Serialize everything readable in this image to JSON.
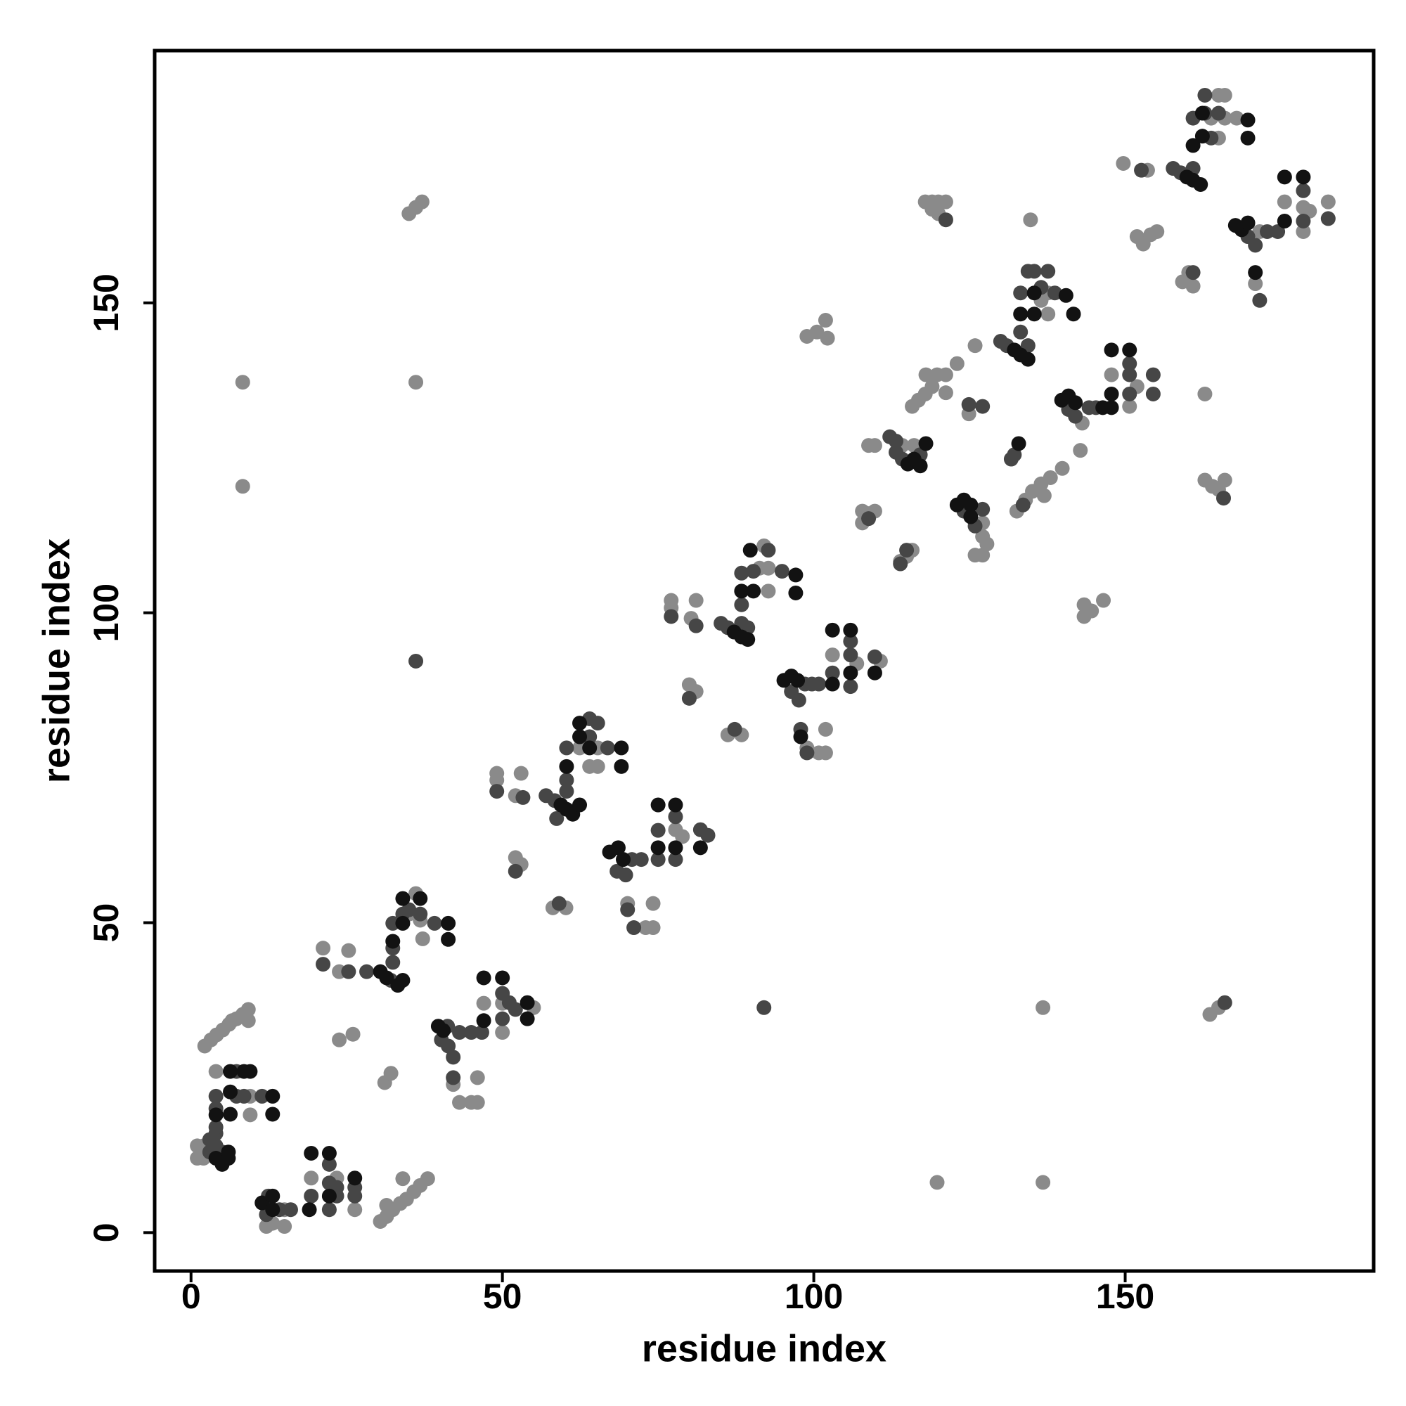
{
  "chart_data": {
    "type": "scatter",
    "xlabel": "residue index",
    "ylabel": "residue index",
    "xlim": [
      -5.84,
      189.9
    ],
    "ylim": [
      -6.2,
      190.7
    ],
    "xticks": [
      0,
      50,
      100,
      150
    ],
    "yticks": [
      0,
      50,
      100,
      150
    ],
    "series": [
      {
        "color": "#8a8a8a",
        "x": [
          1,
          1,
          2,
          2,
          4,
          9.5,
          9.5,
          12.1,
          13.1,
          15,
          15,
          19.3,
          23.4,
          26.3,
          2.2,
          3.2,
          4.1,
          5.1,
          6.1,
          7.3,
          8.3,
          9.2,
          6.6,
          9.2,
          30.4,
          31.4,
          32.4,
          33.6,
          34.6,
          35.8,
          36.8,
          38,
          34,
          31.4,
          36.1,
          35,
          37.2,
          36.8,
          25.3,
          21.2,
          23.8,
          23.8,
          26,
          31.1,
          32.1,
          42.1,
          43.1,
          45,
          46,
          46,
          47,
          50,
          50,
          55,
          49.1,
          49.1,
          53,
          52.1,
          52.1,
          53,
          58.1,
          60.2,
          62.4,
          65.3,
          64,
          65.3,
          70.1,
          73,
          74.2,
          74.2,
          77.8,
          78.9,
          77.1,
          77.1,
          81.1,
          80.3,
          80,
          81.1,
          86.2,
          88.4,
          92,
          91.3,
          92.7,
          92.7,
          98.9,
          100.8,
          101.9,
          101.9,
          103,
          106.9,
          110.7,
          98.9,
          100.5,
          101.9,
          102.2,
          107.8,
          107.8,
          108.8,
          109.8,
          113.9,
          114.9,
          115.8,
          108.8,
          109.8,
          116.1,
          114.2,
          115.8,
          116.8,
          117.9,
          119,
          119.8,
          121.2,
          121.2,
          118,
          123,
          125.9,
          117.9,
          119,
          120,
          121.2,
          119,
          120,
          127.1,
          127.1,
          127.8,
          125.9,
          127.1,
          124.9,
          137.6,
          137.6,
          136.5,
          134.8,
          132.6,
          134,
          135.1,
          136.5,
          138,
          137,
          139.9,
          142.8,
          143.1,
          147.8,
          150.7,
          151.9,
          143.4,
          143.4,
          144.6,
          146.5,
          165,
          166,
          163.8,
          166,
          167.9,
          165,
          149.7,
          153.6,
          151.9,
          152.9,
          154.1,
          155.1,
          159.2,
          160.2,
          160.9,
          162.8,
          162.8,
          164,
          165,
          166,
          163.6,
          165,
          171.6,
          170.9,
          175.6,
          178.6,
          178.6,
          179.6,
          182.6,
          8.3,
          8.3,
          36.1,
          35,
          36.1,
          37.1,
          136.8,
          119.8,
          136.8
        ],
        "values": [
          12,
          14,
          14,
          12,
          26,
          22,
          19,
          1,
          1.5,
          3.7,
          1,
          8.8,
          8.8,
          3.7,
          30.1,
          31.1,
          31.9,
          32.7,
          33.6,
          34.5,
          35.2,
          36,
          34.2,
          34.2,
          1.8,
          2.6,
          3.7,
          4.7,
          5.4,
          6.6,
          7.6,
          8.7,
          8.7,
          4.4,
          54.7,
          51.4,
          47.4,
          50.4,
          45.5,
          45.9,
          42.1,
          31.1,
          32,
          24.2,
          25.7,
          23.9,
          21,
          21,
          25,
          21,
          37,
          37,
          32.3,
          36.3,
          74.1,
          73,
          74.1,
          70.5,
          60.5,
          59.4,
          52.4,
          52.4,
          78.2,
          78.2,
          75.2,
          75.2,
          53.1,
          49.2,
          49.2,
          53.1,
          65,
          63.9,
          102,
          100.8,
          102,
          99.1,
          88.4,
          87.3,
          80.3,
          80.3,
          110.8,
          107.2,
          107.2,
          103.5,
          78.2,
          77.4,
          77.4,
          81.2,
          93.2,
          91.8,
          92.2,
          144.6,
          145.3,
          147.2,
          144.3,
          114.5,
          116.4,
          116,
          116.4,
          108.3,
          109.1,
          110.1,
          127,
          127,
          127,
          127,
          133.3,
          134.3,
          135.3,
          136.5,
          138.4,
          138.4,
          135.5,
          138.4,
          140.2,
          143.1,
          166.3,
          165.1,
          164.4,
          166.3,
          166.3,
          166.3,
          114.5,
          112.3,
          111.1,
          109.3,
          109.3,
          132.1,
          151.6,
          148.2,
          150.4,
          163.4,
          116.4,
          118.2,
          119.6,
          120.8,
          121.8,
          118.9,
          123.3,
          126.2,
          130.6,
          138.4,
          133.3,
          136.5,
          101.3,
          99.4,
          100.3,
          102,
          183.5,
          183.5,
          179.8,
          179.8,
          179.8,
          176.6,
          172.5,
          171.4,
          160.7,
          159.5,
          161,
          161.5,
          153.4,
          154.9,
          152.7,
          135.3,
          121.4,
          120.4,
          119.9,
          121.4,
          35.2,
          36.3,
          161.5,
          153.1,
          166.3,
          165.4,
          161.5,
          164.8,
          166.3,
          137.2,
          120.4,
          137.2,
          164.4,
          165.4,
          166.3,
          36.3,
          8.1,
          8.1
        ]
      },
      {
        "color": "#464646",
        "x": [
          3,
          3,
          4,
          5,
          5,
          4,
          4,
          4,
          4,
          7.3,
          8.5,
          11.4,
          7.3,
          12.4,
          12.1,
          14.2,
          16,
          19.3,
          22.2,
          22.2,
          22.2,
          23.4,
          23.4,
          26.3,
          26.3,
          28.2,
          32.1,
          32.4,
          32.4,
          32.4,
          34,
          35,
          36.8,
          39.1,
          25.3,
          21.2,
          41.2,
          40.2,
          41.3,
          42.1,
          42.1,
          43.1,
          45,
          46.7,
          50,
          50,
          51.1,
          52.1,
          49.1,
          53.3,
          52.1,
          59.1,
          57,
          58.4,
          60.3,
          60.3,
          60.3,
          64,
          65.3,
          64,
          66.9,
          58.7,
          68.4,
          69.8,
          70.8,
          72.3,
          70.1,
          71.1,
          75,
          75,
          77.8,
          77.8,
          81.8,
          83,
          77.1,
          81.1,
          80,
          87.3,
          85.1,
          86.2,
          88.4,
          88.4,
          88.4,
          90.3,
          92.7,
          94.9,
          89.4,
          96.4,
          97.6,
          98.6,
          99.7,
          100.8,
          97.9,
          98.9,
          103,
          105.9,
          105.9,
          105.9,
          109.8,
          108.8,
          114.9,
          113.9,
          112.2,
          113.2,
          113.2,
          114.2,
          117.1,
          121.2,
          124.1,
          125.9,
          127.1,
          124.9,
          127.1,
          130,
          131,
          134.4,
          133.2,
          133.2,
          134.4,
          136.5,
          138.7,
          137.6,
          135.4,
          132.2,
          131.7,
          133.6,
          140.9,
          142,
          144.2,
          145.3,
          150.7,
          150.7,
          150.7,
          154.5,
          154.5,
          157.7,
          158.9,
          160.9,
          160.9,
          162.8,
          162.8,
          165,
          163.8,
          152.6,
          160.9,
          165.8,
          166,
          169.7,
          170.9,
          171.6,
          172.8,
          174.5,
          178.6,
          178.6,
          182.6,
          36.1,
          92
        ],
        "values": [
          13,
          15,
          14,
          12,
          13,
          16,
          17,
          20,
          22,
          22,
          22,
          22,
          26,
          5.9,
          2.9,
          3.7,
          3.7,
          5.9,
          11,
          8,
          3.7,
          7.3,
          5.9,
          7.3,
          5.9,
          42.1,
          40.7,
          43.6,
          45.9,
          49.9,
          51.4,
          52.1,
          51.4,
          49.9,
          42.1,
          43.3,
          33.3,
          31.1,
          30.1,
          28.3,
          25,
          32.3,
          32.3,
          32.3,
          38.6,
          34.5,
          37.1,
          36,
          71.2,
          70.2,
          58.3,
          53.1,
          70.5,
          69.7,
          71.2,
          73,
          78.2,
          82.9,
          82.2,
          80,
          78.2,
          66.8,
          58.3,
          57.7,
          60.2,
          60.2,
          52.1,
          49.2,
          60.2,
          64.9,
          67.1,
          60.2,
          65,
          64.1,
          99.4,
          97.9,
          86.2,
          81.2,
          98.3,
          97.6,
          98.3,
          101.3,
          106.4,
          106.7,
          110.1,
          106.7,
          97.6,
          87.3,
          85.9,
          88.5,
          88.5,
          88.5,
          81.2,
          77.4,
          90.3,
          95.4,
          93.2,
          88.1,
          92.9,
          115.2,
          110.1,
          107.9,
          128.4,
          127.7,
          125.9,
          124.8,
          125.5,
          163.4,
          116.4,
          114,
          116.7,
          133.6,
          133.3,
          143.8,
          143.1,
          143.1,
          145.3,
          151.6,
          155.1,
          152.5,
          151.6,
          155.1,
          155.1,
          125.5,
          124.8,
          117.4,
          132.8,
          131.7,
          133.1,
          133.1,
          140.2,
          138.4,
          135.3,
          138.4,
          135.3,
          171.7,
          171,
          171.7,
          179.8,
          183.5,
          180.6,
          180.6,
          176.6,
          171.4,
          154.9,
          118.5,
          37.1,
          160.7,
          159.3,
          150.4,
          161.5,
          161.5,
          168.1,
          163.2,
          163.6,
          92.2,
          36.3
        ]
      },
      {
        "color": "#121212",
        "x": [
          5,
          4,
          6,
          6,
          4,
          6.3,
          13.1,
          6.3,
          13.1,
          6.3,
          8.5,
          9.5,
          11.4,
          13.1,
          13.1,
          19,
          19.3,
          22.2,
          22.2,
          26.3,
          30.4,
          31.4,
          33.2,
          34,
          32.4,
          34,
          34,
          36.8,
          41.3,
          41.3,
          39.7,
          40.5,
          47,
          47,
          50,
          54,
          54,
          59.4,
          60.3,
          61.3,
          62.4,
          60.3,
          62.4,
          62.4,
          69.1,
          69.1,
          64,
          67.2,
          68.6,
          69.4,
          75,
          75,
          77.8,
          77.8,
          81.8,
          87.2,
          88.4,
          89.4,
          88.4,
          89.8,
          90.3,
          97.1,
          97.1,
          95.2,
          96.4,
          97.4,
          97.9,
          103,
          103,
          105.9,
          105.9,
          109.8,
          115.1,
          116.1,
          117.1,
          118,
          123,
          124.1,
          125.2,
          125.2,
          132.2,
          133.2,
          134.4,
          133.2,
          135.4,
          135.4,
          140.5,
          141.7,
          132.9,
          139.8,
          140.9,
          142,
          146.4,
          147.8,
          147.8,
          147.8,
          150.7,
          159.9,
          160.9,
          162.1,
          160.9,
          162.4,
          169.7,
          169.7,
          162.4,
          167.7,
          168.7,
          169.7,
          170.9,
          175.6,
          175.6,
          178.6
        ],
        "values": [
          11,
          12,
          12,
          13,
          19,
          19.1,
          19.1,
          22.7,
          22,
          26,
          26,
          26,
          4.8,
          5.9,
          3.7,
          3.7,
          12.8,
          12.8,
          5.9,
          8.8,
          42.1,
          41.1,
          39.9,
          40.7,
          47,
          49.9,
          53.9,
          53.9,
          49.9,
          47.3,
          33.3,
          32.6,
          34.2,
          41.1,
          41.1,
          37.1,
          34.5,
          69,
          68.3,
          67.5,
          69,
          75.2,
          80,
          82.2,
          78.2,
          75.2,
          78.2,
          61.4,
          62.1,
          60.2,
          62.1,
          69,
          69,
          62.1,
          62.1,
          96.9,
          96.1,
          95.7,
          103.5,
          110.1,
          103.5,
          106.1,
          103.2,
          89.1,
          89.8,
          89.1,
          80,
          88.5,
          97.2,
          97.2,
          90.3,
          90.3,
          124,
          124.8,
          123.7,
          127.3,
          117.4,
          118.2,
          117.4,
          115.5,
          142.4,
          141.6,
          140.9,
          148.2,
          151.6,
          148.2,
          151.2,
          148.2,
          127.3,
          134.3,
          135,
          133.9,
          133.1,
          133.1,
          135.3,
          142.4,
          142.4,
          170.3,
          169.8,
          169.1,
          175.4,
          176.9,
          179.5,
          176.6,
          180.6,
          162.5,
          161.8,
          162.9,
          154.9,
          163.2,
          170.3,
          170.3
        ]
      }
    ]
  }
}
